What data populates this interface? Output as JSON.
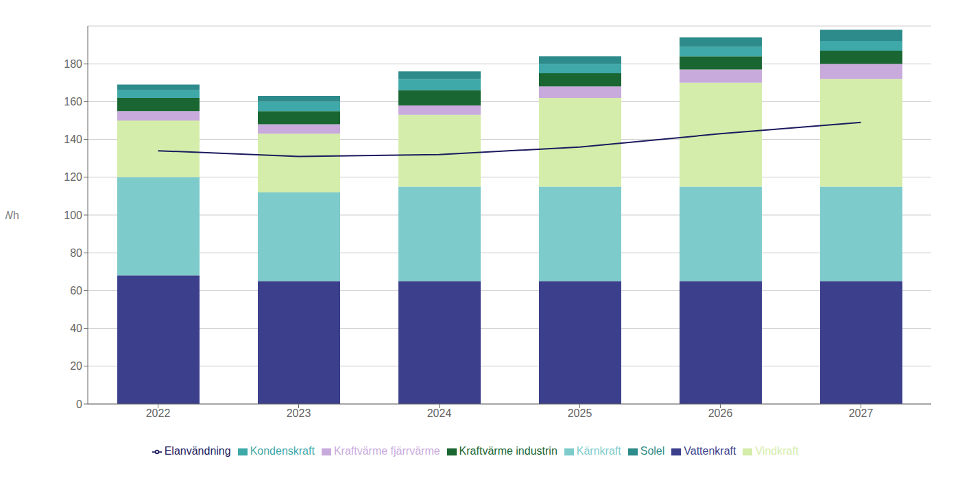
{
  "chart_data": {
    "type": "bar",
    "stacked": true,
    "grid": true,
    "legend": "bottom",
    "categories": [
      "2022",
      "2023",
      "2024",
      "2025",
      "2026",
      "2027"
    ],
    "ylabel": "TWh",
    "ylim": [
      0,
      200
    ],
    "yticks": [
      0,
      20,
      40,
      60,
      80,
      100,
      120,
      140,
      160,
      180
    ],
    "series": [
      {
        "name": "Vattenkraft",
        "type": "bar",
        "color": "#3B3F8C",
        "values": [
          68,
          65,
          65,
          65,
          65,
          65
        ]
      },
      {
        "name": "Kärnkraft",
        "type": "bar",
        "color": "#7ECBCB",
        "values": [
          52,
          47,
          50,
          50,
          50,
          50
        ]
      },
      {
        "name": "Vindkraft",
        "type": "bar",
        "color": "#D4EDAA",
        "values": [
          30,
          31,
          38,
          47,
          55,
          57
        ]
      },
      {
        "name": "Kraftvärme fjärrvärme",
        "type": "bar",
        "color": "#C8AADC",
        "values": [
          5,
          5,
          5,
          6,
          7,
          8
        ]
      },
      {
        "name": "Kraftvärme industrin",
        "type": "bar",
        "color": "#1A6632",
        "values": [
          7,
          7,
          8,
          7,
          7,
          7
        ]
      },
      {
        "name": "Kondenskraft",
        "type": "bar",
        "color": "#3FA8A8",
        "values": [
          4,
          5,
          6,
          5,
          5,
          5
        ]
      },
      {
        "name": "Solel",
        "type": "bar",
        "color": "#2E8B8B",
        "values": [
          3,
          3,
          4,
          4,
          5,
          6
        ]
      },
      {
        "name": "Elanvändning",
        "type": "line",
        "color": "#1A1A5E",
        "values": [
          134,
          131,
          132,
          136,
          143,
          149
        ]
      }
    ]
  }
}
